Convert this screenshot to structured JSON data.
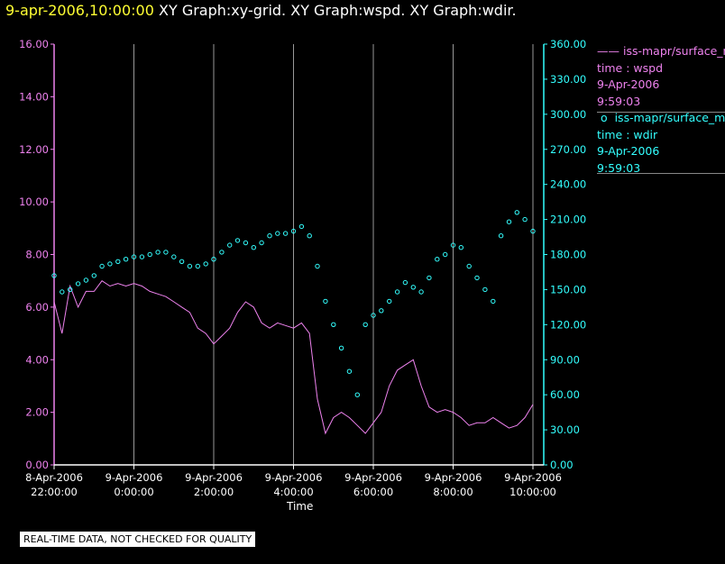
{
  "header": {
    "timestamp": "9-apr-2006,10:00:00",
    "title": "XY Graph:xy-grid.  XY Graph:wspd.  XY Graph:wdir."
  },
  "legend": {
    "series1": {
      "name": "iss-mapr/surface_m",
      "line2": "time : wspd",
      "line3": "9-Apr-2006",
      "line4": "9:59:03"
    },
    "series2": {
      "name": "iss-mapr/surface_m",
      "line2": "time : wdir",
      "line3": "9-Apr-2006",
      "line4": "9:59:03"
    }
  },
  "note": "REAL-TIME DATA, NOT CHECKED FOR QUALITY",
  "colors": {
    "left_axis": "#ee82ee",
    "right_axis": "#33ffff",
    "grid": "#999999",
    "background": "#000000"
  },
  "chart_data": {
    "type": "scatter",
    "xlabel": "Time",
    "x_ticks": [
      {
        "line1": "8-Apr-2006",
        "line2": "22:00:00",
        "hour": -2
      },
      {
        "line1": "9-Apr-2006",
        "line2": "0:00:00",
        "hour": 0
      },
      {
        "line1": "9-Apr-2006",
        "line2": "2:00:00",
        "hour": 2
      },
      {
        "line1": "9-Apr-2006",
        "line2": "4:00:00",
        "hour": 4
      },
      {
        "line1": "9-Apr-2006",
        "line2": "6:00:00",
        "hour": 6
      },
      {
        "line1": "9-Apr-2006",
        "line2": "8:00:00",
        "hour": 8
      },
      {
        "line1": "9-Apr-2006",
        "line2": "10:00:00",
        "hour": 10
      }
    ],
    "xlim": [
      -2.0,
      10.0
    ],
    "y_left": {
      "ylim": [
        0,
        16
      ],
      "ticks": [
        "0.00",
        "2.00",
        "4.00",
        "6.00",
        "8.00",
        "10.00",
        "12.00",
        "14.00",
        "16.00"
      ]
    },
    "y_right": {
      "ylim": [
        0,
        360
      ],
      "ticks": [
        "0.00",
        "30.00",
        "60.00",
        "90.00",
        "120.00",
        "150.00",
        "180.00",
        "210.00",
        "240.00",
        "270.00",
        "300.00",
        "330.00",
        "360.00"
      ]
    },
    "series": [
      {
        "name": "wspd",
        "axis": "left",
        "style": "line",
        "points": [
          [
            -2.0,
            6.2
          ],
          [
            -1.8,
            5.0
          ],
          [
            -1.6,
            6.8
          ],
          [
            -1.4,
            6.0
          ],
          [
            -1.2,
            6.6
          ],
          [
            -1.0,
            6.6
          ],
          [
            -0.8,
            7.0
          ],
          [
            -0.6,
            6.8
          ],
          [
            -0.4,
            6.9
          ],
          [
            -0.2,
            6.8
          ],
          [
            0.0,
            6.9
          ],
          [
            0.2,
            6.8
          ],
          [
            0.4,
            6.6
          ],
          [
            0.6,
            6.5
          ],
          [
            0.8,
            6.4
          ],
          [
            1.0,
            6.2
          ],
          [
            1.2,
            6.0
          ],
          [
            1.4,
            5.8
          ],
          [
            1.6,
            5.2
          ],
          [
            1.8,
            5.0
          ],
          [
            2.0,
            4.6
          ],
          [
            2.2,
            4.9
          ],
          [
            2.4,
            5.2
          ],
          [
            2.6,
            5.8
          ],
          [
            2.8,
            6.2
          ],
          [
            3.0,
            6.0
          ],
          [
            3.2,
            5.4
          ],
          [
            3.4,
            5.2
          ],
          [
            3.6,
            5.4
          ],
          [
            3.8,
            5.3
          ],
          [
            4.0,
            5.2
          ],
          [
            4.2,
            5.4
          ],
          [
            4.4,
            5.0
          ],
          [
            4.6,
            2.5
          ],
          [
            4.8,
            1.2
          ],
          [
            5.0,
            1.8
          ],
          [
            5.2,
            2.0
          ],
          [
            5.4,
            1.8
          ],
          [
            5.6,
            1.5
          ],
          [
            5.8,
            1.2
          ],
          [
            6.0,
            1.6
          ],
          [
            6.2,
            2.0
          ],
          [
            6.4,
            3.0
          ],
          [
            6.6,
            3.6
          ],
          [
            6.8,
            3.8
          ],
          [
            7.0,
            4.0
          ],
          [
            7.2,
            3.0
          ],
          [
            7.4,
            2.2
          ],
          [
            7.6,
            2.0
          ],
          [
            7.8,
            2.1
          ],
          [
            8.0,
            2.0
          ],
          [
            8.2,
            1.8
          ],
          [
            8.4,
            1.5
          ],
          [
            8.6,
            1.6
          ],
          [
            8.8,
            1.6
          ],
          [
            9.0,
            1.8
          ],
          [
            9.2,
            1.6
          ],
          [
            9.4,
            1.4
          ],
          [
            9.6,
            1.5
          ],
          [
            9.8,
            1.8
          ],
          [
            10.0,
            2.3
          ]
        ]
      },
      {
        "name": "wdir",
        "axis": "right",
        "style": "points",
        "points": [
          [
            -2.0,
            162
          ],
          [
            -1.8,
            148
          ],
          [
            -1.6,
            150
          ],
          [
            -1.4,
            155
          ],
          [
            -1.2,
            158
          ],
          [
            -1.0,
            162
          ],
          [
            -0.8,
            170
          ],
          [
            -0.6,
            172
          ],
          [
            -0.4,
            174
          ],
          [
            -0.2,
            176
          ],
          [
            0.0,
            178
          ],
          [
            0.2,
            178
          ],
          [
            0.4,
            180
          ],
          [
            0.6,
            182
          ],
          [
            0.8,
            182
          ],
          [
            1.0,
            178
          ],
          [
            1.2,
            174
          ],
          [
            1.4,
            170
          ],
          [
            1.6,
            170
          ],
          [
            1.8,
            172
          ],
          [
            2.0,
            176
          ],
          [
            2.2,
            182
          ],
          [
            2.4,
            188
          ],
          [
            2.6,
            192
          ],
          [
            2.8,
            190
          ],
          [
            3.0,
            186
          ],
          [
            3.2,
            190
          ],
          [
            3.4,
            196
          ],
          [
            3.6,
            198
          ],
          [
            3.8,
            198
          ],
          [
            4.0,
            200
          ],
          [
            4.2,
            204
          ],
          [
            4.4,
            196
          ],
          [
            4.6,
            170
          ],
          [
            4.8,
            140
          ],
          [
            5.0,
            120
          ],
          [
            5.2,
            100
          ],
          [
            5.4,
            80
          ],
          [
            5.6,
            60
          ],
          [
            5.8,
            120
          ],
          [
            6.0,
            128
          ],
          [
            6.2,
            132
          ],
          [
            6.4,
            140
          ],
          [
            6.6,
            148
          ],
          [
            6.8,
            156
          ],
          [
            7.0,
            152
          ],
          [
            7.2,
            148
          ],
          [
            7.4,
            160
          ],
          [
            7.6,
            176
          ],
          [
            7.8,
            180
          ],
          [
            8.0,
            188
          ],
          [
            8.2,
            186
          ],
          [
            8.4,
            170
          ],
          [
            8.6,
            160
          ],
          [
            8.8,
            150
          ],
          [
            9.0,
            140
          ],
          [
            9.2,
            196
          ],
          [
            9.4,
            208
          ],
          [
            9.6,
            216
          ],
          [
            9.8,
            210
          ],
          [
            10.0,
            200
          ]
        ]
      }
    ]
  }
}
